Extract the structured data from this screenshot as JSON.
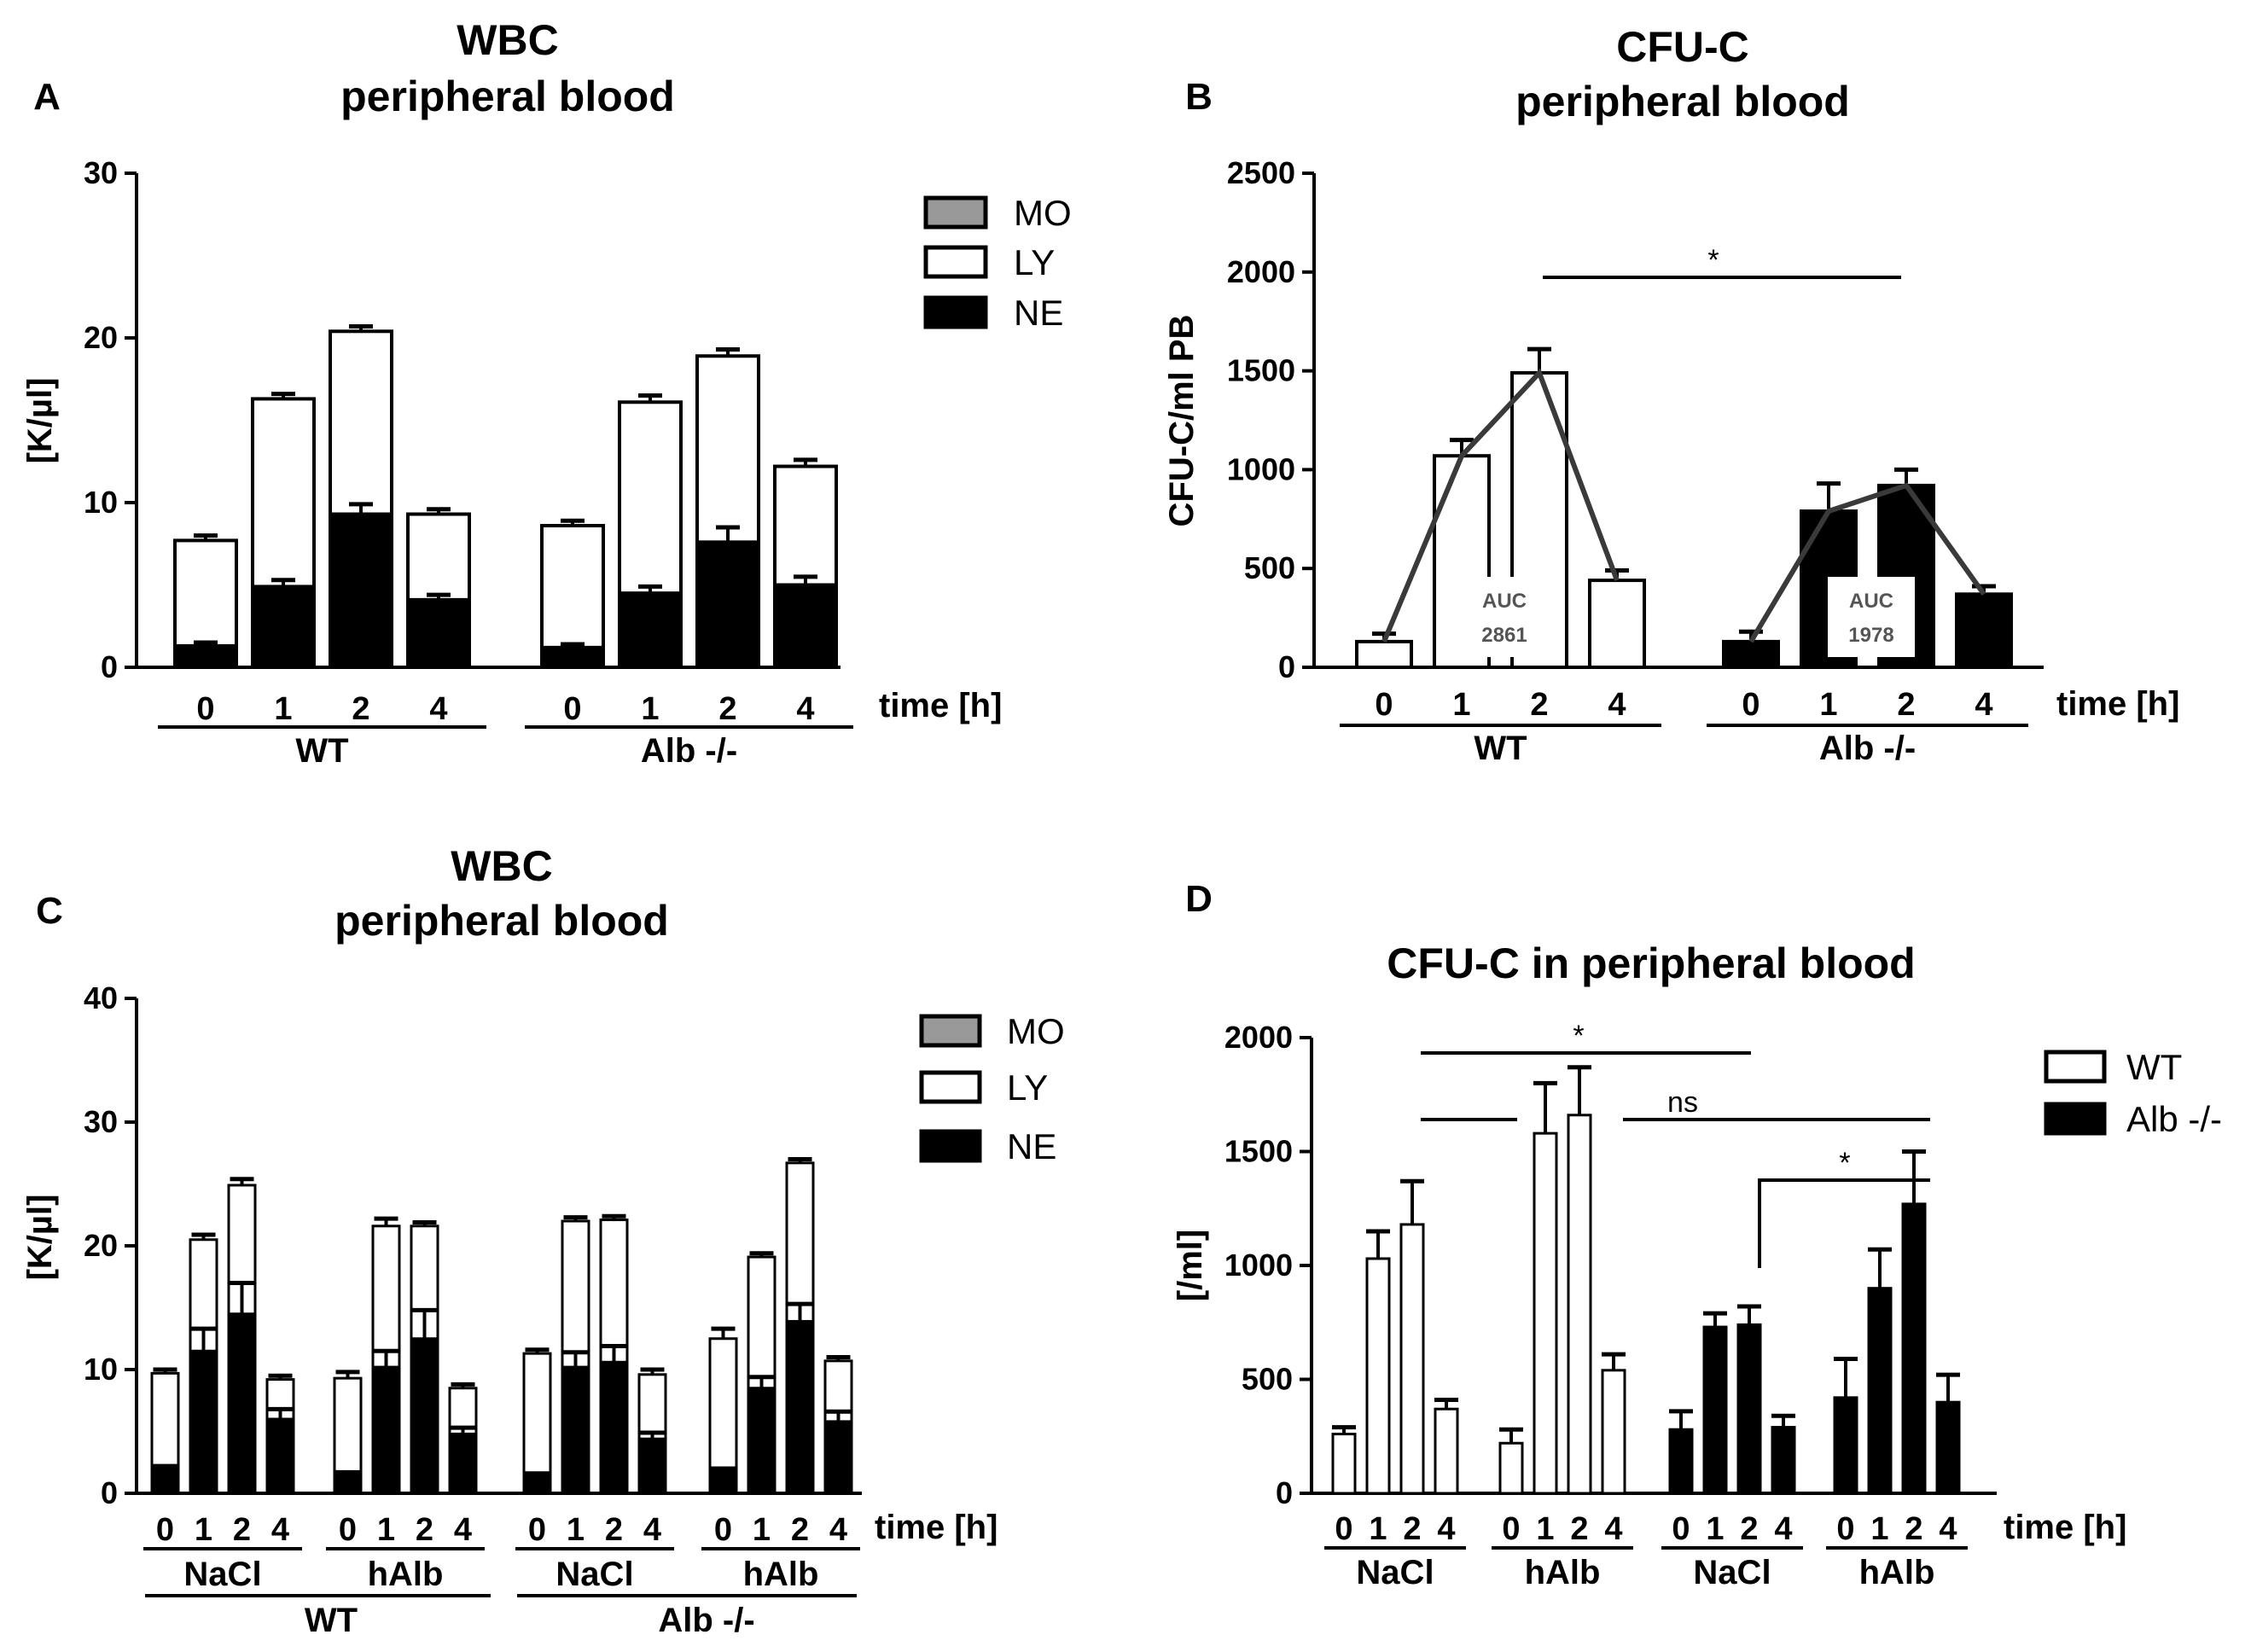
{
  "chart_data": [
    {
      "panel": "A",
      "type": "bar",
      "stacked": true,
      "title": [
        "WBC",
        "peripheral blood"
      ],
      "ylabel": "[K/µl]",
      "xlabel": "time [h]",
      "ylim": [
        0,
        30
      ],
      "yticks": [
        "0",
        "10",
        "20",
        "30"
      ],
      "legend": {
        "position": "top-right",
        "entries": [
          {
            "label": "MO",
            "color": "#999999"
          },
          {
            "label": "LY",
            "color": "#ffffff"
          },
          {
            "label": "NE",
            "color": "#000000"
          }
        ]
      },
      "groups": [
        {
          "name": "WT",
          "categories": [
            "0",
            "1",
            "2",
            "4"
          ],
          "NE": [
            1.3,
            4.9,
            9.3,
            4.1
          ],
          "NE_err": [
            0.2,
            0.4,
            0.6,
            0.3
          ],
          "total": [
            7.7,
            16.3,
            20.4,
            9.3
          ],
          "total_err": [
            0.3,
            0.3,
            0.3,
            0.3
          ]
        },
        {
          "name": "Alb -/-",
          "categories": [
            "0",
            "1",
            "2",
            "4"
          ],
          "NE": [
            1.2,
            4.5,
            7.6,
            5.0
          ],
          "NE_err": [
            0.2,
            0.4,
            0.9,
            0.5
          ],
          "total": [
            8.6,
            16.1,
            18.9,
            12.2
          ],
          "total_err": [
            0.3,
            0.4,
            0.4,
            0.4
          ]
        }
      ]
    },
    {
      "panel": "B",
      "type": "bar",
      "title": [
        "CFU-C",
        "peripheral blood"
      ],
      "ylabel": "CFU-C/ml PB",
      "xlabel": "time [h]",
      "ylim": [
        0,
        2500
      ],
      "yticks": [
        "0",
        "500",
        "1000",
        "1500",
        "2000",
        "2500"
      ],
      "groups": [
        {
          "name": "WT",
          "categories": [
            "0",
            "1",
            "2",
            "4"
          ],
          "fill": "#ffffff",
          "values": [
            130,
            1070,
            1490,
            440
          ],
          "err": [
            40,
            80,
            120,
            50
          ],
          "auc_label": [
            "AUC",
            "2861"
          ]
        },
        {
          "name": "Alb -/-",
          "categories": [
            "0",
            "1",
            "2",
            "4"
          ],
          "fill": "#000000",
          "values": [
            130,
            790,
            920,
            370
          ],
          "err": [
            50,
            140,
            80,
            40
          ],
          "auc_label": [
            "AUC",
            "1978"
          ]
        }
      ],
      "annotations": [
        {
          "text": "*"
        }
      ]
    },
    {
      "panel": "C",
      "type": "bar",
      "stacked": true,
      "title": [
        "WBC",
        "peripheral blood"
      ],
      "ylabel": "[K/µl]",
      "xlabel": "time [h]",
      "ylim": [
        0,
        40
      ],
      "yticks": [
        "0",
        "10",
        "20",
        "30",
        "40"
      ],
      "legend": {
        "position": "top-right",
        "entries": [
          {
            "label": "MO",
            "color": "#999999"
          },
          {
            "label": "LY",
            "color": "#ffffff"
          },
          {
            "label": "NE",
            "color": "#000000"
          }
        ]
      },
      "groups": [
        {
          "name": "NaCl",
          "parent": "WT",
          "categories": [
            "0",
            "1",
            "2",
            "4"
          ],
          "NE": [
            2.0,
            11.5,
            14.5,
            6.0
          ],
          "NE_err": [
            0.2,
            1.8,
            2.5,
            0.8
          ],
          "total": [
            9.7,
            20.5,
            24.9,
            9.2
          ],
          "total_err": [
            0.3,
            0.4,
            0.5,
            0.3
          ]
        },
        {
          "name": "hAlb",
          "parent": "WT",
          "categories": [
            "0",
            "1",
            "2",
            "4"
          ],
          "NE": [
            1.5,
            10.2,
            12.5,
            4.8
          ],
          "NE_err": [
            0.2,
            1.3,
            2.3,
            0.5
          ],
          "total": [
            9.3,
            21.6,
            21.6,
            8.5
          ],
          "total_err": [
            0.5,
            0.6,
            0.3,
            0.3
          ]
        },
        {
          "name": "NaCl",
          "parent": "Alb -/-",
          "categories": [
            "0",
            "1",
            "2",
            "4"
          ],
          "NE": [
            1.4,
            10.2,
            10.6,
            4.4
          ],
          "NE_err": [
            0.2,
            1.2,
            1.3,
            0.5
          ],
          "total": [
            11.3,
            22.0,
            22.1,
            9.6
          ],
          "total_err": [
            0.3,
            0.3,
            0.3,
            0.4
          ]
        },
        {
          "name": "hAlb",
          "parent": "Alb -/-",
          "categories": [
            "0",
            "1",
            "2",
            "4"
          ],
          "NE": [
            1.8,
            8.5,
            13.9,
            5.8
          ],
          "NE_err": [
            0.2,
            0.9,
            1.4,
            0.8
          ],
          "total": [
            12.5,
            19.1,
            26.7,
            10.7
          ],
          "total_err": [
            0.8,
            0.3,
            0.3,
            0.3
          ]
        }
      ],
      "parents": [
        "WT",
        "Alb -/-"
      ]
    },
    {
      "panel": "D",
      "type": "bar",
      "title": [
        "CFU-C in peripheral blood"
      ],
      "ylabel": "[/ml]",
      "xlabel": "time [h]",
      "ylim": [
        0,
        2000
      ],
      "yticks": [
        "0",
        "500",
        "1000",
        "1500",
        "2000"
      ],
      "legend": {
        "position": "top-right",
        "entries": [
          {
            "label": "WT",
            "color": "#ffffff"
          },
          {
            "label": "Alb -/-",
            "color": "#000000"
          }
        ]
      },
      "groups": [
        {
          "name": "NaCl",
          "series": "WT",
          "categories": [
            "0",
            "1",
            "2",
            "4"
          ],
          "values": [
            260,
            1030,
            1180,
            370
          ],
          "err": [
            30,
            120,
            190,
            40
          ]
        },
        {
          "name": "hAlb",
          "series": "WT",
          "categories": [
            "0",
            "1",
            "2",
            "4"
          ],
          "values": [
            220,
            1580,
            1660,
            540
          ],
          "err": [
            60,
            220,
            210,
            70
          ]
        },
        {
          "name": "NaCl",
          "series": "Alb -/-",
          "categories": [
            "0",
            "1",
            "2",
            "4"
          ],
          "values": [
            280,
            730,
            740,
            290
          ],
          "err": [
            80,
            60,
            80,
            50
          ]
        },
        {
          "name": "hAlb",
          "series": "Alb -/-",
          "categories": [
            "0",
            "1",
            "2",
            "4"
          ],
          "values": [
            420,
            900,
            1270,
            400
          ],
          "err": [
            170,
            170,
            230,
            120
          ]
        }
      ],
      "annotations": [
        {
          "text": "*"
        },
        {
          "text": "ns"
        },
        {
          "text": "*"
        }
      ]
    }
  ]
}
